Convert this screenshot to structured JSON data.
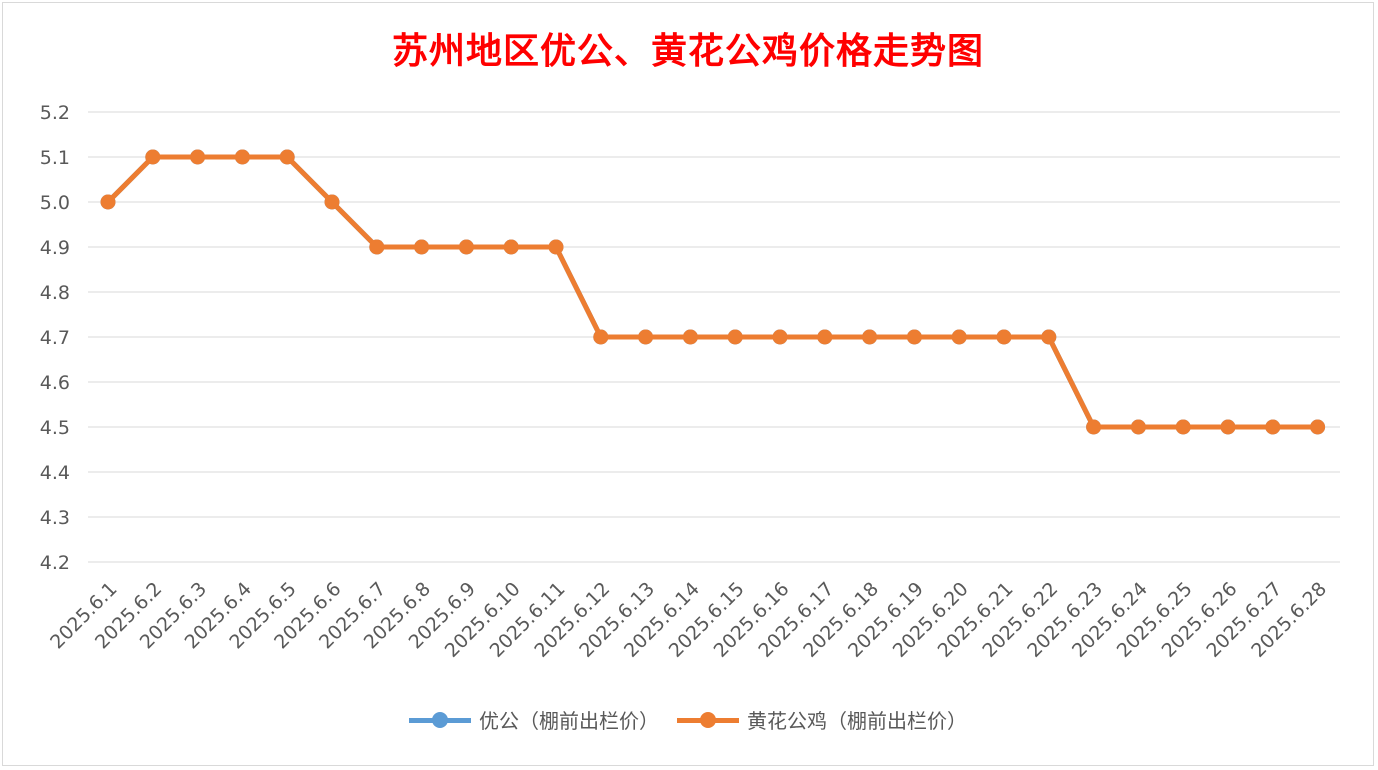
{
  "chart_data": {
    "type": "line",
    "title": "苏州地区优公、黄花公鸡价格走势图",
    "categories": [
      "2025.6.1",
      "2025.6.2",
      "2025.6.3",
      "2025.6.4",
      "2025.6.5",
      "2025.6.6",
      "2025.6.7",
      "2025.6.8",
      "2025.6.9",
      "2025.6.10",
      "2025.6.11",
      "2025.6.12",
      "2025.6.13",
      "2025.6.14",
      "2025.6.15",
      "2025.6.16",
      "2025.6.17",
      "2025.6.18",
      "2025.6.19",
      "2025.6.20",
      "2025.6.21",
      "2025.6.22",
      "2025.6.23",
      "2025.6.24",
      "2025.6.25",
      "2025.6.26",
      "2025.6.27",
      "2025.6.28"
    ],
    "series": [
      {
        "name": "优公（棚前出栏价）",
        "color": "#5b9bd5",
        "values": [
          5.0,
          5.1,
          5.1,
          5.1,
          5.1,
          5.0,
          4.9,
          4.9,
          4.9,
          4.9,
          4.9,
          4.7,
          4.7,
          4.7,
          4.7,
          4.7,
          4.7,
          4.7,
          4.7,
          4.7,
          4.7,
          4.7,
          4.5,
          4.5,
          4.5,
          4.5,
          4.5,
          4.5
        ]
      },
      {
        "name": "黄花公鸡（棚前出栏价）",
        "color": "#ed7d31",
        "values": [
          5.0,
          5.1,
          5.1,
          5.1,
          5.1,
          5.0,
          4.9,
          4.9,
          4.9,
          4.9,
          4.9,
          4.7,
          4.7,
          4.7,
          4.7,
          4.7,
          4.7,
          4.7,
          4.7,
          4.7,
          4.7,
          4.7,
          4.5,
          4.5,
          4.5,
          4.5,
          4.5,
          4.5
        ]
      }
    ],
    "ylim": [
      4.2,
      5.2
    ],
    "yticks": [
      "4.2",
      "4.3",
      "4.4",
      "4.5",
      "4.6",
      "4.7",
      "4.8",
      "4.9",
      "5.0",
      "5.1",
      "5.2"
    ],
    "grid": true,
    "legend_position": "bottom",
    "title_color": "#ff0000",
    "gridline_color": "#d9d9d9",
    "text_color": "#595959"
  }
}
